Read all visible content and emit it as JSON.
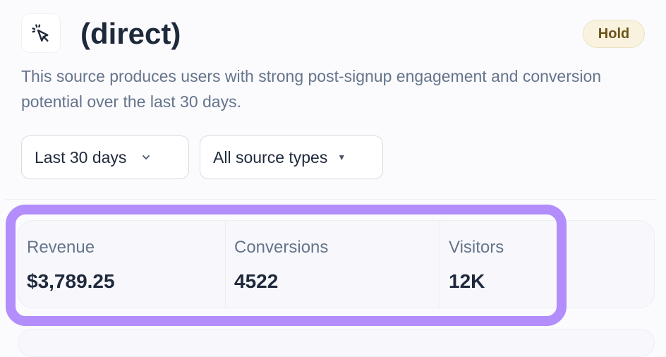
{
  "header": {
    "title": "(direct)",
    "icon": "cursor-click-icon",
    "badge": "Hold"
  },
  "description": "This source produces users with strong post-signup engagement and conversion potential over the last 30 days.",
  "filters": {
    "date_range": "Last 30 days",
    "source_type": "All source types"
  },
  "stats": [
    {
      "label": "Revenue",
      "value": "$3,789.25"
    },
    {
      "label": "Conversions",
      "value": "4522"
    },
    {
      "label": "Visitors",
      "value": "12K"
    }
  ],
  "colors": {
    "highlight": "#b28dfb",
    "badge_bg": "#f8f2de",
    "badge_text": "#6b5418"
  }
}
